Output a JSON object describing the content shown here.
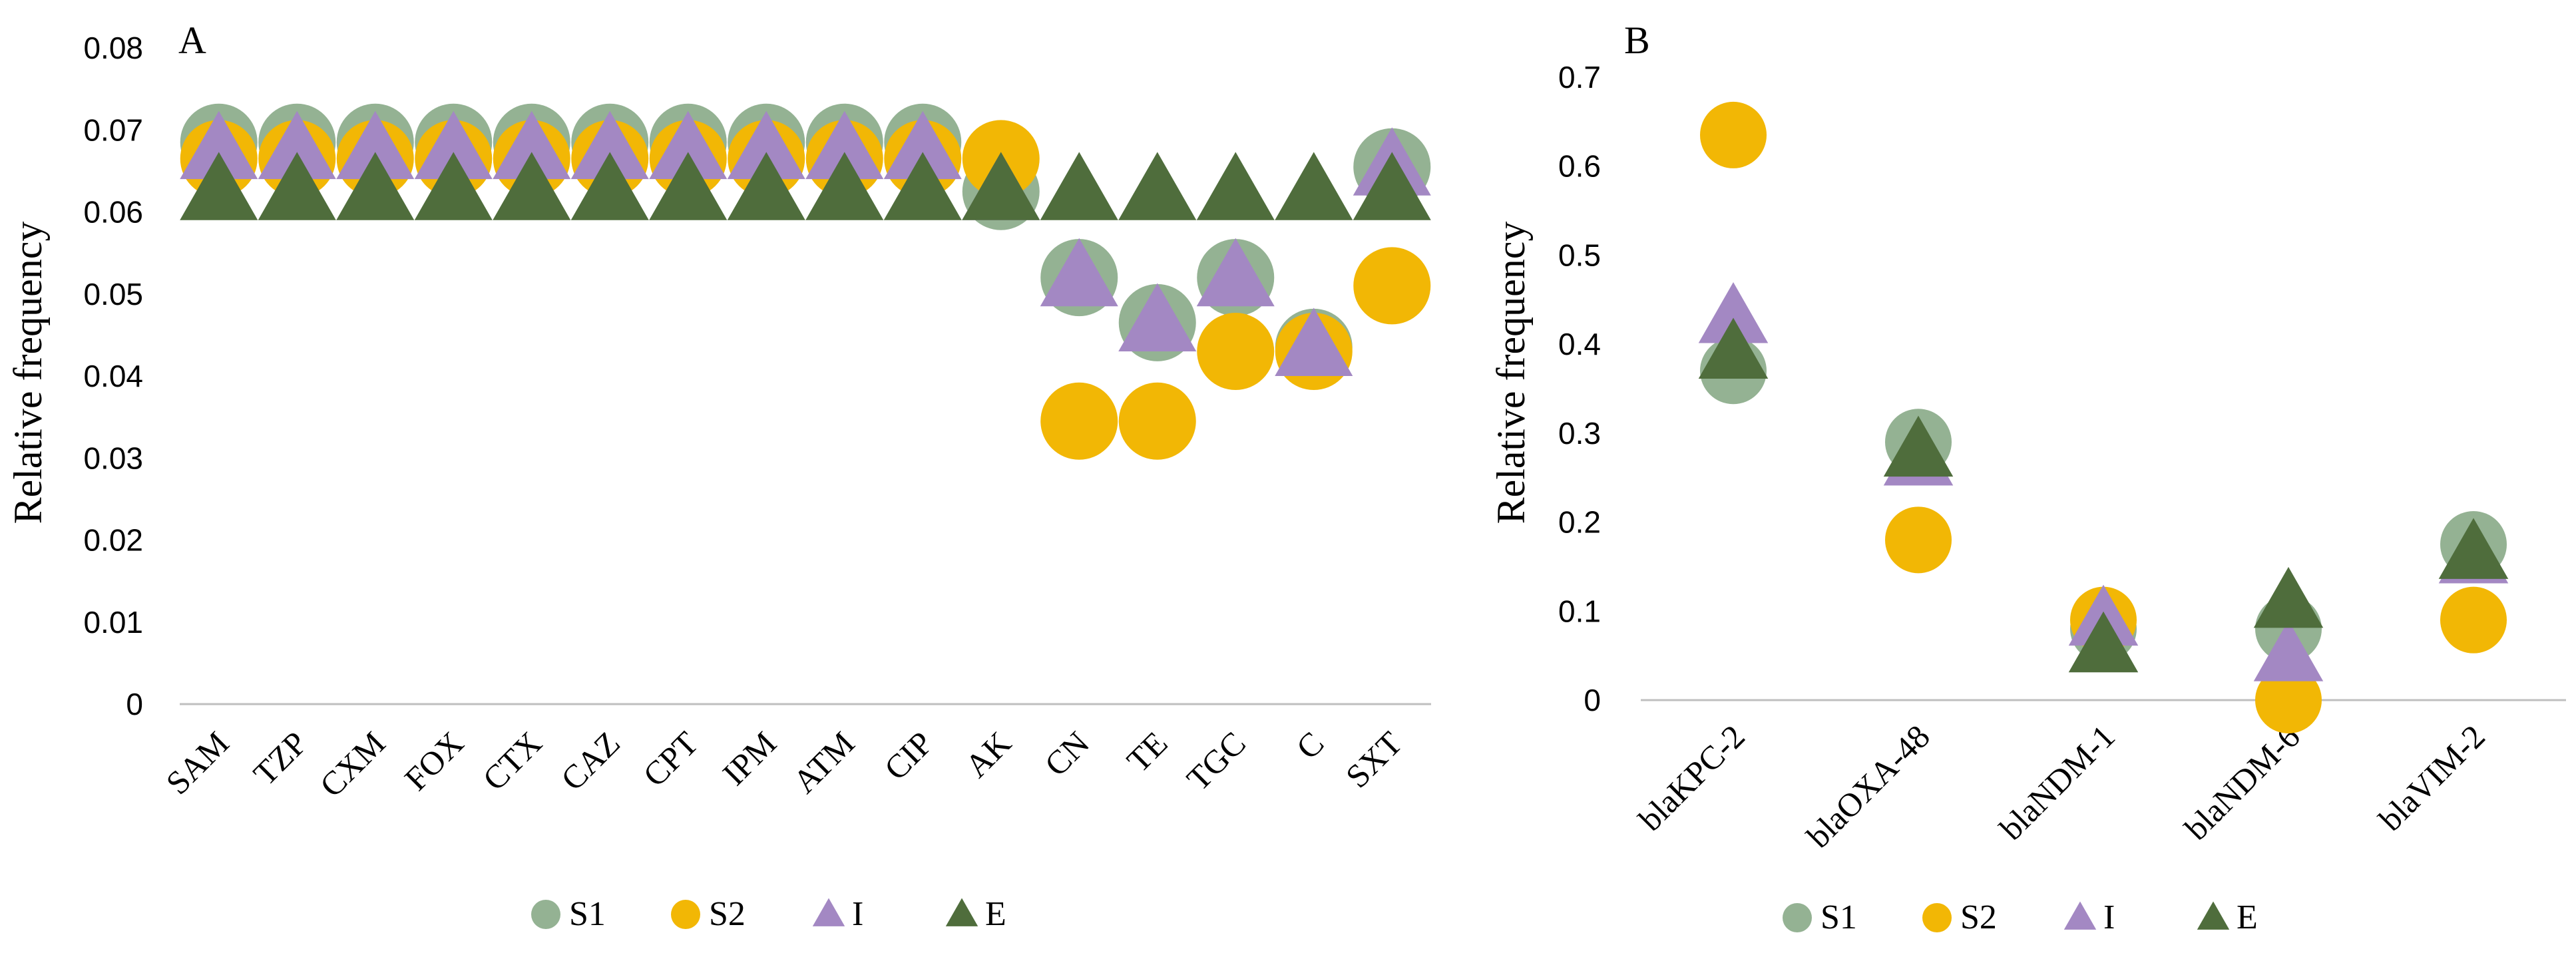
{
  "colors": {
    "S1": "#94b293",
    "S2": "#f2b705",
    "I": "#a388c3",
    "E": "#4f6d3c",
    "axis": "#bfbfbf"
  },
  "chart_data": [
    {
      "type": "scatter",
      "panel_label": "A",
      "ylabel": "Relative frequency",
      "ylim": [
        0,
        0.08
      ],
      "yticks": [
        "0",
        "0.01",
        "0.02",
        "0.03",
        "0.04",
        "0.05",
        "0.06",
        "0.07",
        "0.08"
      ],
      "categories": [
        "SAM",
        "TZP",
        "CXM",
        "FOX",
        "CTX",
        "CAZ",
        "CPT",
        "IPM",
        "ATM",
        "CIP",
        "AK",
        "CN",
        "TE",
        "TGC",
        "C",
        "SXT"
      ],
      "series": [
        {
          "name": "S1",
          "marker": "circle",
          "values": [
            0.0685,
            0.0685,
            0.0685,
            0.0685,
            0.0685,
            0.0685,
            0.0685,
            0.0685,
            0.0685,
            0.0685,
            0.0625,
            0.052,
            0.0465,
            0.052,
            0.0435,
            0.0655
          ]
        },
        {
          "name": "S2",
          "marker": "circle",
          "values": [
            0.0665,
            0.0665,
            0.0665,
            0.0665,
            0.0665,
            0.0665,
            0.0665,
            0.0665,
            0.0665,
            0.0665,
            0.0665,
            0.0345,
            0.0345,
            0.043,
            0.043,
            0.051
          ]
        },
        {
          "name": "I",
          "marker": "triangle",
          "values": [
            0.0675,
            0.0675,
            0.0675,
            0.0675,
            0.0675,
            0.0675,
            0.0675,
            0.0675,
            0.0675,
            0.0675,
            0.0625,
            0.052,
            0.0465,
            0.052,
            0.0435,
            0.0655
          ]
        },
        {
          "name": "E",
          "marker": "triangle",
          "values": [
            0.0625,
            0.0625,
            0.0625,
            0.0625,
            0.0625,
            0.0625,
            0.0625,
            0.0625,
            0.0625,
            0.0625,
            0.0625,
            0.0625,
            0.0625,
            0.0625,
            0.0625,
            0.0625
          ]
        }
      ],
      "legend": [
        "S1",
        "S2",
        "I",
        "E"
      ]
    },
    {
      "type": "scatter",
      "panel_label": "B",
      "ylabel": "Relative frequency",
      "ylim": [
        0,
        0.7
      ],
      "yticks": [
        "0",
        "0.1",
        "0.2",
        "0.3",
        "0.4",
        "0.5",
        "0.6",
        "0.7"
      ],
      "categories": [
        "blaKPC-2",
        "blaOXA-48",
        "blaNDM-1",
        "blaNDM-6",
        "blaVIM-2"
      ],
      "series": [
        {
          "name": "S1",
          "marker": "circle",
          "values": [
            0.37,
            0.29,
            0.08,
            0.08,
            0.175
          ]
        },
        {
          "name": "S2",
          "marker": "circle",
          "values": [
            0.635,
            0.18,
            0.09,
            0.0,
            0.09
          ]
        },
        {
          "name": "I",
          "marker": "triangle",
          "values": [
            0.43,
            0.27,
            0.09,
            0.05,
            0.16
          ]
        },
        {
          "name": "E",
          "marker": "triangle",
          "values": [
            0.39,
            0.28,
            0.06,
            0.11,
            0.165
          ]
        }
      ],
      "legend": [
        "S1",
        "S2",
        "I",
        "E"
      ]
    }
  ]
}
